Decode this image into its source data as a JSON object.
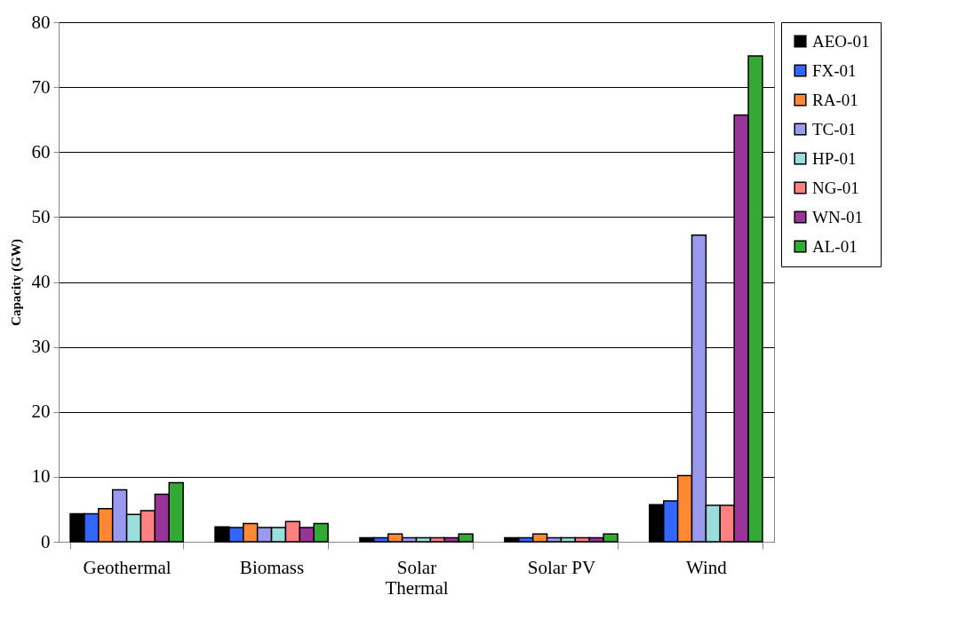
{
  "chart_data": {
    "type": "bar",
    "ylabel": "Capacity (GW)",
    "categories": [
      "Geothermal",
      "Biomass",
      "Solar Thermal",
      "Solar PV",
      "Wind"
    ],
    "series": [
      {
        "name": "AEO-01",
        "color": "#000000",
        "values": [
          4.3,
          2.3,
          0.6,
          0.6,
          5.7
        ]
      },
      {
        "name": "FX-01",
        "color": "#3366ff",
        "values": [
          4.3,
          2.2,
          0.6,
          0.6,
          6.3
        ]
      },
      {
        "name": "RA-01",
        "color": "#ff8833",
        "values": [
          5.1,
          2.8,
          1.2,
          1.2,
          10.2
        ]
      },
      {
        "name": "TC-01",
        "color": "#9999ee",
        "values": [
          8.0,
          2.2,
          0.6,
          0.6,
          47.2
        ]
      },
      {
        "name": "HP-01",
        "color": "#99dddd",
        "values": [
          4.2,
          2.2,
          0.6,
          0.6,
          5.6
        ]
      },
      {
        "name": "NG-01",
        "color": "#ff8080",
        "values": [
          4.8,
          3.1,
          0.6,
          0.6,
          5.6
        ]
      },
      {
        "name": "WN-01",
        "color": "#993399",
        "values": [
          7.3,
          2.2,
          0.6,
          0.6,
          65.7
        ]
      },
      {
        "name": "AL-01",
        "color": "#33aa33",
        "values": [
          9.1,
          2.8,
          1.2,
          1.2,
          74.8
        ]
      }
    ],
    "ylim": [
      0,
      80
    ],
    "yticks": [
      0,
      10,
      20,
      30,
      40,
      50,
      60,
      70,
      80
    ],
    "grid": "y",
    "legend": "right"
  }
}
